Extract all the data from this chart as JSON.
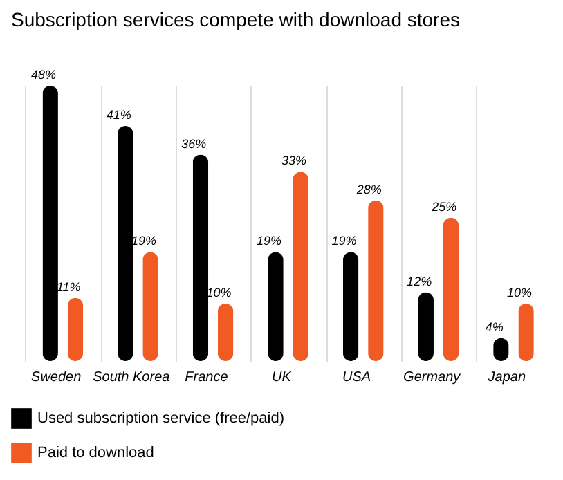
{
  "chart_data": {
    "type": "bar",
    "title": "Subscription services compete with download stores",
    "categories": [
      "Sweden",
      "South Korea",
      "France",
      "UK",
      "USA",
      "Germany",
      "Japan"
    ],
    "series": [
      {
        "name": "Used subscription service (free/paid)",
        "color": "#000000",
        "values": [
          48,
          41,
          36,
          19,
          19,
          12,
          4
        ],
        "value_labels": [
          "48%",
          "41%",
          "36%",
          "19%",
          "19%",
          "12%",
          "4%"
        ]
      },
      {
        "name": "Paid to download",
        "color": "#f15a22",
        "values": [
          11,
          19,
          10,
          33,
          28,
          25,
          10
        ],
        "value_labels": [
          "11%",
          "19%",
          "10%",
          "33%",
          "28%",
          "25%",
          "10%"
        ]
      }
    ],
    "grid": "x",
    "legend": "bottom"
  }
}
